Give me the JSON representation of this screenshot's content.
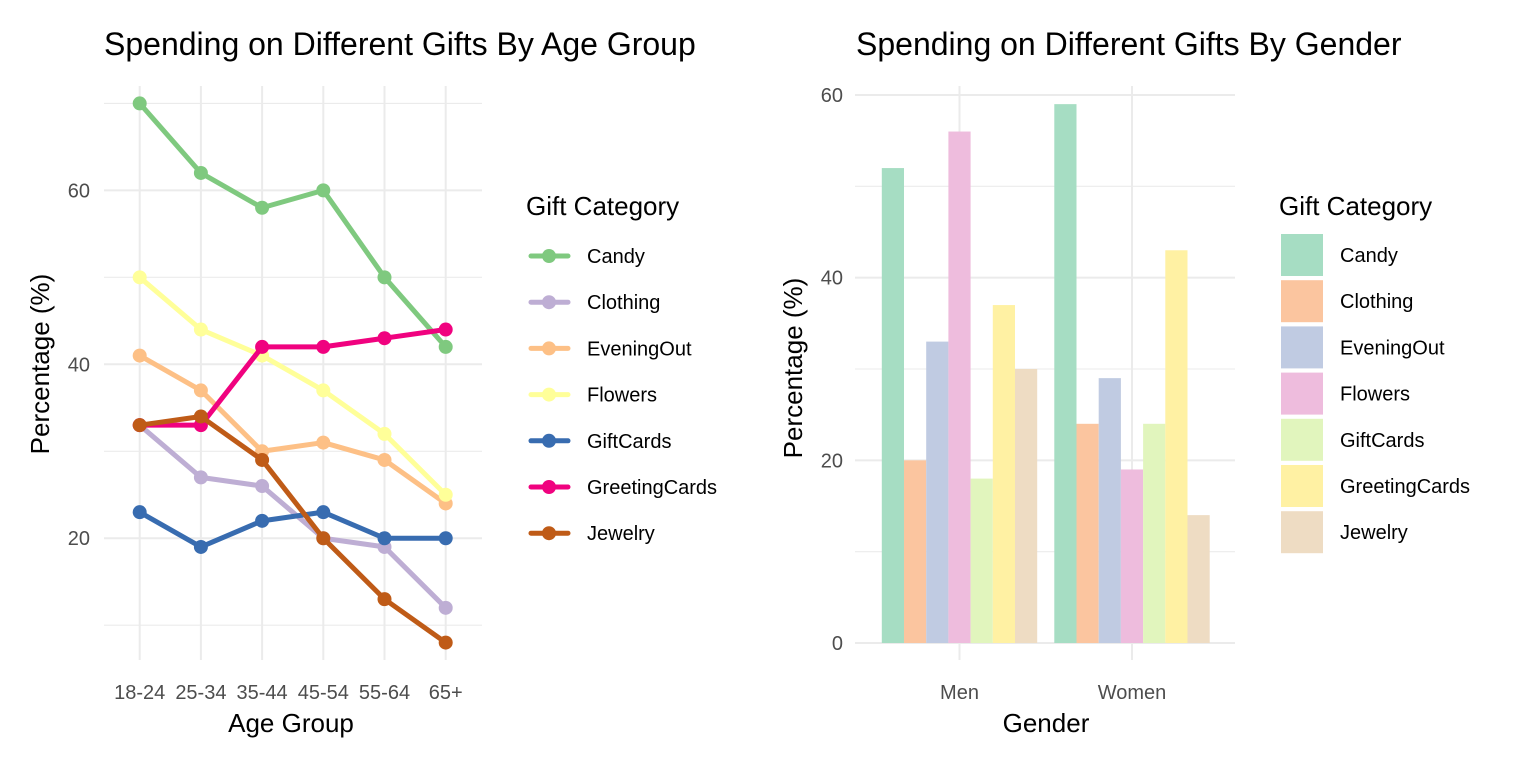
{
  "chart_data": [
    {
      "type": "line",
      "title": "Spending on Different Gifts By Age Group",
      "xlabel": "Age Group",
      "ylabel": "Percentage (%)",
      "categories": [
        "18-24",
        "25-34",
        "35-44",
        "45-54",
        "55-64",
        "65+"
      ],
      "ylim": [
        6,
        72
      ],
      "yticks": [
        20,
        40,
        60
      ],
      "grid": true,
      "legend": {
        "title": "Gift Category",
        "placement": "right"
      },
      "series": [
        {
          "name": "Candy",
          "color": "#7FC97F",
          "values": [
            70,
            62,
            58,
            60,
            50,
            42
          ]
        },
        {
          "name": "Clothing",
          "color": "#BEAED4",
          "values": [
            33,
            27,
            26,
            20,
            19,
            12
          ]
        },
        {
          "name": "EveningOut",
          "color": "#FDC086",
          "values": [
            41,
            37,
            30,
            31,
            29,
            24
          ]
        },
        {
          "name": "Flowers",
          "color": "#FFFF99",
          "values": [
            50,
            44,
            41,
            37,
            32,
            25
          ]
        },
        {
          "name": "GiftCards",
          "color": "#386CB0",
          "values": [
            23,
            19,
            22,
            23,
            20,
            20
          ]
        },
        {
          "name": "GreetingCards",
          "color": "#F0027F",
          "values": [
            33,
            33,
            42,
            42,
            43,
            44
          ]
        },
        {
          "name": "Jewelry",
          "color": "#BF5B17",
          "values": [
            33,
            34,
            29,
            20,
            13,
            8
          ]
        }
      ]
    },
    {
      "type": "bar",
      "title": "Spending on Different Gifts By Gender",
      "xlabel": "Gender",
      "ylabel": "Percentage (%)",
      "categories": [
        "Men",
        "Women"
      ],
      "ylim": [
        0,
        62
      ],
      "yticks": [
        0,
        20,
        40,
        60
      ],
      "grid": true,
      "legend": {
        "title": "Gift Category",
        "placement": "right"
      },
      "series": [
        {
          "name": "Candy",
          "color": "#A6DDC3",
          "values": [
            52,
            59
          ]
        },
        {
          "name": "Clothing",
          "color": "#FBC59F",
          "values": [
            20,
            24
          ]
        },
        {
          "name": "EveningOut",
          "color": "#C0CBE2",
          "values": [
            33,
            29
          ]
        },
        {
          "name": "Flowers",
          "color": "#EEBCDD",
          "values": [
            56,
            19
          ]
        },
        {
          "name": "GiftCards",
          "color": "#E1F5BD",
          "values": [
            18,
            24
          ]
        },
        {
          "name": "GreetingCards",
          "color": "#FFF1A3",
          "values": [
            37,
            43
          ]
        },
        {
          "name": "Jewelry",
          "color": "#EEDCC3",
          "values": [
            30,
            14
          ]
        }
      ]
    }
  ]
}
